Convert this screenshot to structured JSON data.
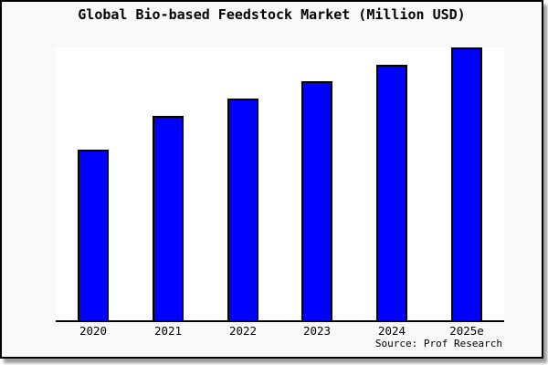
{
  "title": "Global Bio-based Feedstock Market (Million USD)",
  "source": "Source: Prof Research",
  "colors": {
    "bar_fill": "#0000ff",
    "bar_border": "#000000",
    "frame_background": "#f9f9f9",
    "plot_background": "#ffffff",
    "axis": "#000000",
    "frame_border": "#000000",
    "shadow": "#9e9e9e",
    "text": "#000000"
  },
  "chart_data": {
    "type": "bar",
    "title": "Global Bio-based Feedstock Market (Million USD)",
    "categories": [
      "2020",
      "2021",
      "2022",
      "2023",
      "2024",
      "2025e"
    ],
    "values": [
      62.7,
      75.0,
      81.3,
      87.7,
      93.7,
      100.0
    ],
    "units": "relative bar height index (2025e = 100); no numeric y-axis shown in image",
    "xlabel": "",
    "ylabel": "",
    "ylim": [
      0,
      100
    ],
    "grid": false,
    "legend": null,
    "annotation": "Source: Prof Research"
  }
}
